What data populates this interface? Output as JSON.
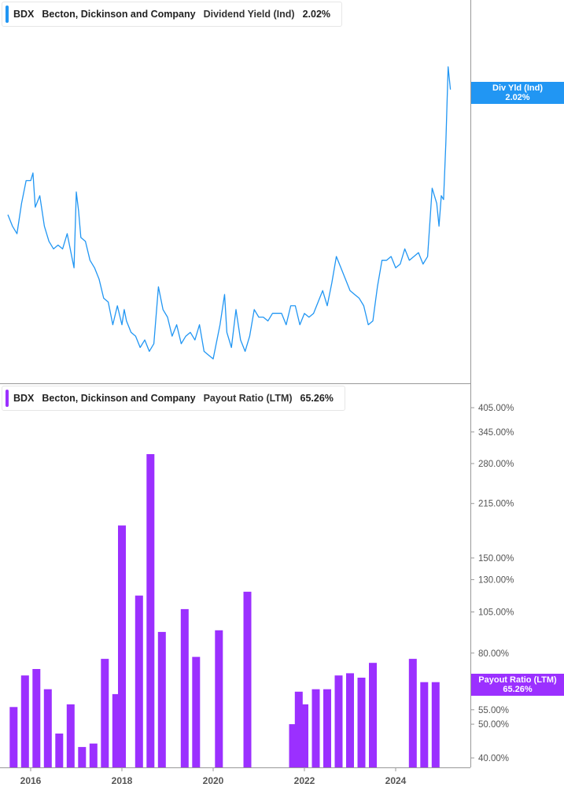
{
  "colors": {
    "yield": "#2196f3",
    "payout": "#9b30ff",
    "axis": "#999999",
    "tick_text": "#555555"
  },
  "panels": {
    "top": {
      "ticker": "BDX",
      "company": "Becton, Dickinson and Company",
      "metric": "Dividend Yield (Ind)",
      "value": "2.02%",
      "badge_title": "Div Yld (Ind)",
      "badge_value": "2.02%"
    },
    "bottom": {
      "ticker": "BDX",
      "company": "Becton, Dickinson and Company",
      "metric": "Payout Ratio (LTM)",
      "value": "65.26%",
      "badge_title": "Payout Ratio (LTM)",
      "badge_value": "65.26%"
    }
  },
  "chart_data": [
    {
      "type": "line",
      "title": "Dividend Yield (Ind)",
      "series": [
        {
          "name": "Dividend Yield (Ind)",
          "values": [
            [
              2015.5,
              1.69
            ],
            [
              2015.6,
              1.66
            ],
            [
              2015.7,
              1.64
            ],
            [
              2015.8,
              1.72
            ],
            [
              2015.9,
              1.78
            ],
            [
              2016.0,
              1.78
            ],
            [
              2016.05,
              1.8
            ],
            [
              2016.1,
              1.71
            ],
            [
              2016.2,
              1.74
            ],
            [
              2016.3,
              1.66
            ],
            [
              2016.4,
              1.62
            ],
            [
              2016.5,
              1.6
            ],
            [
              2016.6,
              1.61
            ],
            [
              2016.7,
              1.6
            ],
            [
              2016.8,
              1.64
            ],
            [
              2016.9,
              1.58
            ],
            [
              2016.95,
              1.55
            ],
            [
              2017.0,
              1.75
            ],
            [
              2017.05,
              1.7
            ],
            [
              2017.1,
              1.63
            ],
            [
              2017.2,
              1.62
            ],
            [
              2017.3,
              1.57
            ],
            [
              2017.4,
              1.55
            ],
            [
              2017.5,
              1.52
            ],
            [
              2017.6,
              1.47
            ],
            [
              2017.7,
              1.46
            ],
            [
              2017.8,
              1.4
            ],
            [
              2017.9,
              1.45
            ],
            [
              2018.0,
              1.4
            ],
            [
              2018.05,
              1.44
            ],
            [
              2018.1,
              1.41
            ],
            [
              2018.2,
              1.38
            ],
            [
              2018.3,
              1.37
            ],
            [
              2018.4,
              1.34
            ],
            [
              2018.5,
              1.36
            ],
            [
              2018.6,
              1.33
            ],
            [
              2018.7,
              1.35
            ],
            [
              2018.8,
              1.5
            ],
            [
              2018.9,
              1.44
            ],
            [
              2019.0,
              1.42
            ],
            [
              2019.1,
              1.37
            ],
            [
              2019.2,
              1.4
            ],
            [
              2019.3,
              1.35
            ],
            [
              2019.4,
              1.37
            ],
            [
              2019.5,
              1.38
            ],
            [
              2019.6,
              1.36
            ],
            [
              2019.7,
              1.4
            ],
            [
              2019.8,
              1.33
            ],
            [
              2019.9,
              1.32
            ],
            [
              2020.0,
              1.31
            ],
            [
              2020.05,
              1.34
            ],
            [
              2020.15,
              1.4
            ],
            [
              2020.25,
              1.48
            ],
            [
              2020.3,
              1.38
            ],
            [
              2020.4,
              1.34
            ],
            [
              2020.5,
              1.44
            ],
            [
              2020.6,
              1.36
            ],
            [
              2020.7,
              1.33
            ],
            [
              2020.8,
              1.37
            ],
            [
              2020.9,
              1.44
            ],
            [
              2021.0,
              1.42
            ],
            [
              2021.1,
              1.42
            ],
            [
              2021.2,
              1.41
            ],
            [
              2021.3,
              1.43
            ],
            [
              2021.4,
              1.43
            ],
            [
              2021.5,
              1.43
            ],
            [
              2021.6,
              1.4
            ],
            [
              2021.7,
              1.45
            ],
            [
              2021.8,
              1.45
            ],
            [
              2021.9,
              1.4
            ],
            [
              2022.0,
              1.43
            ],
            [
              2022.1,
              1.42
            ],
            [
              2022.2,
              1.43
            ],
            [
              2022.3,
              1.46
            ],
            [
              2022.4,
              1.49
            ],
            [
              2022.5,
              1.45
            ],
            [
              2022.6,
              1.51
            ],
            [
              2022.7,
              1.58
            ],
            [
              2022.8,
              1.55
            ],
            [
              2022.9,
              1.52
            ],
            [
              2023.0,
              1.49
            ],
            [
              2023.1,
              1.48
            ],
            [
              2023.2,
              1.47
            ],
            [
              2023.3,
              1.45
            ],
            [
              2023.4,
              1.4
            ],
            [
              2023.5,
              1.41
            ],
            [
              2023.6,
              1.5
            ],
            [
              2023.7,
              1.57
            ],
            [
              2023.8,
              1.57
            ],
            [
              2023.9,
              1.58
            ],
            [
              2024.0,
              1.55
            ],
            [
              2024.1,
              1.56
            ],
            [
              2024.2,
              1.6
            ],
            [
              2024.3,
              1.57
            ],
            [
              2024.4,
              1.58
            ],
            [
              2024.5,
              1.59
            ],
            [
              2024.6,
              1.56
            ],
            [
              2024.7,
              1.58
            ],
            [
              2024.8,
              1.76
            ],
            [
              2024.9,
              1.72
            ],
            [
              2024.95,
              1.66
            ],
            [
              2025.0,
              1.74
            ],
            [
              2025.05,
              1.73
            ],
            [
              2025.1,
              1.88
            ],
            [
              2025.15,
              2.08
            ],
            [
              2025.2,
              2.02
            ]
          ]
        }
      ]
    },
    {
      "type": "bar",
      "title": "Payout Ratio (LTM)",
      "series": [
        {
          "name": "Payout Ratio (LTM)",
          "values": [
            [
              2015.625,
              56
            ],
            [
              2015.875,
              69
            ],
            [
              2016.125,
              72
            ],
            [
              2016.375,
              63
            ],
            [
              2016.625,
              47
            ],
            [
              2016.875,
              57
            ],
            [
              2017.125,
              43
            ],
            [
              2017.375,
              44
            ],
            [
              2017.625,
              77
            ],
            [
              2017.875,
              61
            ],
            [
              2018.0,
              186
            ],
            [
              2018.375,
              117
            ],
            [
              2018.625,
              298
            ],
            [
              2018.875,
              92
            ],
            [
              2019.375,
              107
            ],
            [
              2019.625,
              78
            ],
            [
              2020.125,
              93
            ],
            [
              2020.75,
              120
            ],
            [
              2021.75,
              50
            ],
            [
              2021.875,
              62
            ],
            [
              2022.0,
              57
            ],
            [
              2022.25,
              63
            ],
            [
              2022.5,
              63
            ],
            [
              2022.75,
              69
            ],
            [
              2023.0,
              70
            ],
            [
              2023.25,
              68
            ],
            [
              2023.5,
              75
            ],
            [
              2024.375,
              77
            ],
            [
              2024.625,
              66
            ],
            [
              2024.875,
              66
            ]
          ]
        }
      ],
      "y_scale": "log",
      "y_ticks": [
        "405.00%",
        "345.00%",
        "280.00%",
        "215.00%",
        "150.00%",
        "130.00%",
        "105.00%",
        "80.00%",
        "55.00%",
        "50.00%",
        "40.00%"
      ],
      "y_tick_values": [
        405,
        345,
        280,
        215,
        150,
        130,
        105,
        80,
        55,
        50,
        40
      ]
    }
  ],
  "x_axis": {
    "tick_labels": [
      "2016",
      "2018",
      "2020",
      "2022",
      "2024"
    ],
    "tick_values": [
      2016,
      2018,
      2020,
      2022,
      2024
    ]
  }
}
